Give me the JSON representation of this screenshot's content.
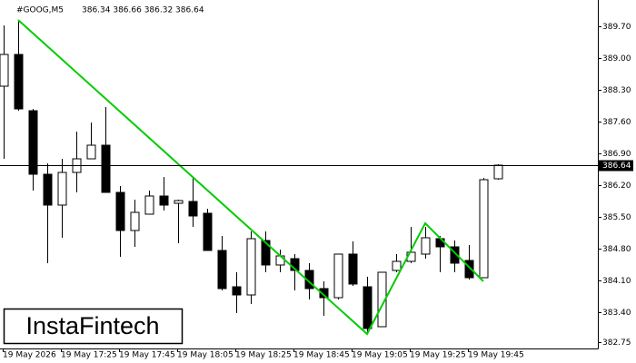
{
  "chart_data": {
    "type": "candlestick",
    "symbol": "#GOOG,M5",
    "ohlc_text": "386.34 386.66 386.32 386.64",
    "logo": "InstaFintech",
    "categories": [
      "19 May 2026",
      null,
      null,
      null,
      "19 May 17:25",
      null,
      null,
      null,
      "19 May 17:45",
      null,
      null,
      null,
      "19 May 18:05",
      null,
      null,
      null,
      "19 May 18:25",
      null,
      null,
      null,
      "19 May 18:45",
      null,
      null,
      null,
      "19 May 19:05",
      null,
      null,
      null,
      "19 May 19:25",
      null,
      null,
      null,
      "19 May 19:45",
      null,
      null
    ],
    "open": [
      388.38,
      389.08,
      387.84,
      386.44,
      385.76,
      386.48,
      386.78,
      387.08,
      386.04,
      385.2,
      385.56,
      385.96,
      385.8,
      385.84,
      385.58,
      384.76,
      383.96,
      383.78,
      384.98,
      384.44,
      384.58,
      384.32,
      383.92,
      383.72,
      384.68,
      383.96,
      383.08,
      384.32,
      384.52,
      384.68,
      385.02,
      384.84,
      384.54,
      384.16,
      386.34
    ],
    "high": [
      389.72,
      389.84,
      387.88,
      386.68,
      386.78,
      387.38,
      387.58,
      387.92,
      386.18,
      385.88,
      386.08,
      386.38,
      385.88,
      386.38,
      385.68,
      385.08,
      384.28,
      385.18,
      385.18,
      384.78,
      384.68,
      384.48,
      384.08,
      384.68,
      384.96,
      384.18,
      384.28,
      384.68,
      385.28,
      385.28,
      385.08,
      384.98,
      384.88,
      386.36,
      386.66
    ],
    "low": [
      386.78,
      387.84,
      386.08,
      384.48,
      385.04,
      386.04,
      386.78,
      386.04,
      384.62,
      384.84,
      385.56,
      385.64,
      384.92,
      385.28,
      384.76,
      383.88,
      383.38,
      383.58,
      384.28,
      384.28,
      383.88,
      383.68,
      383.32,
      383.68,
      383.98,
      382.92,
      383.08,
      384.28,
      384.48,
      384.58,
      384.28,
      384.28,
      384.12,
      384.16,
      386.32
    ],
    "close": [
      389.08,
      387.88,
      386.44,
      385.76,
      386.48,
      386.78,
      387.08,
      386.04,
      385.2,
      385.6,
      385.96,
      385.76,
      385.86,
      385.52,
      384.76,
      383.92,
      383.78,
      385.02,
      384.44,
      384.64,
      384.32,
      383.92,
      383.72,
      384.68,
      384.02,
      383.04,
      384.28,
      384.52,
      384.72,
      385.04,
      384.84,
      384.48,
      384.16,
      386.32,
      386.64
    ],
    "last_price": {
      "value": 386.64,
      "label": "386.64"
    },
    "pattern_line": {
      "color": "#00cc00",
      "x": [
        1,
        25,
        29,
        33
      ],
      "values": [
        389.84,
        382.92,
        385.36,
        384.08
      ]
    },
    "ylim": [
      382.6,
      390.28
    ],
    "yticks": [
      {
        "value": 389.7,
        "label": "389.70"
      },
      {
        "value": 389.0,
        "label": "389.00"
      },
      {
        "value": 388.3,
        "label": "388.30"
      },
      {
        "value": 387.6,
        "label": "387.60"
      },
      {
        "value": 386.9,
        "label": "386.90"
      },
      {
        "value": 386.2,
        "label": "386.20"
      },
      {
        "value": 385.5,
        "label": "385.50"
      },
      {
        "value": 384.8,
        "label": "384.80"
      },
      {
        "value": 384.1,
        "label": "384.10"
      },
      {
        "value": 383.4,
        "label": "383.40"
      },
      382.75
    ]
  }
}
